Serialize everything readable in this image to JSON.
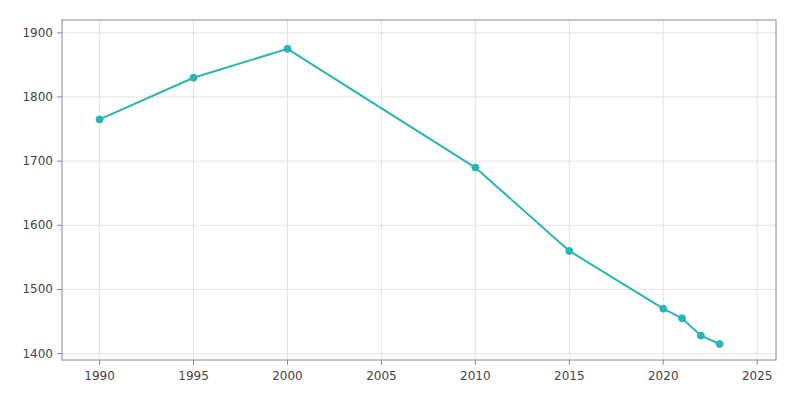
{
  "chart_data": {
    "type": "line",
    "x": [
      1990,
      1995,
      2000,
      2010,
      2015,
      2020,
      2021,
      2022,
      2023
    ],
    "values": [
      1765,
      1830,
      1875,
      1690,
      1560,
      1470,
      1455,
      1428,
      1415
    ],
    "color": "#2ab5b5",
    "marker": "circle",
    "xlim": [
      1988,
      2026
    ],
    "ylim": [
      1390,
      1920
    ],
    "xticks": [
      1990,
      1995,
      2000,
      2005,
      2010,
      2015,
      2020,
      2025
    ],
    "yticks": [
      1400,
      1500,
      1600,
      1700,
      1800,
      1900
    ],
    "grid": true
  }
}
